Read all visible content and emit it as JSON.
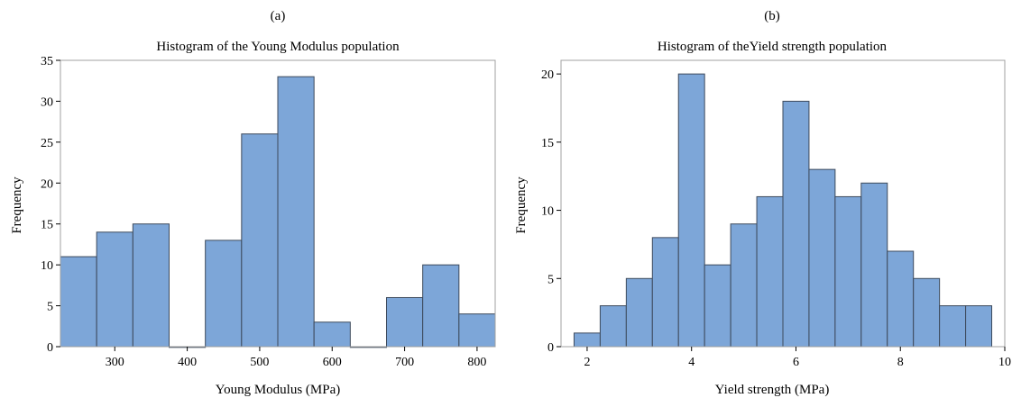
{
  "chart_data": [
    {
      "type": "bar",
      "panel_label": "(a)",
      "title": "Histogram of the Young Modulus population",
      "xlabel": "Young Modulus (MPa)",
      "ylabel": "Frequency",
      "bin_edges": [
        225,
        275,
        325,
        375,
        425,
        475,
        525,
        575,
        625,
        675,
        725,
        775,
        825
      ],
      "values": [
        11,
        14,
        15,
        0,
        13,
        26,
        33,
        3,
        0,
        6,
        10,
        4
      ],
      "xlim": [
        225,
        825
      ],
      "ylim": [
        0,
        35
      ],
      "xticks": [
        300,
        400,
        500,
        600,
        700,
        800
      ],
      "yticks": [
        0,
        5,
        10,
        15,
        20,
        25,
        30,
        35
      ],
      "bar_color": "#7da6d8",
      "edge_color": "#3d4a5c",
      "grid": false
    },
    {
      "type": "bar",
      "panel_label": "(b)",
      "title": "Histogram of theYield strength population",
      "xlabel": "Yield strength (MPa)",
      "ylabel": "Frequency",
      "bin_edges": [
        1.75,
        2.25,
        2.75,
        3.25,
        3.75,
        4.25,
        4.75,
        5.25,
        5.75,
        6.25,
        6.75,
        7.25,
        7.75,
        8.25,
        8.75,
        9.25,
        9.75
      ],
      "values": [
        1,
        3,
        5,
        8,
        20,
        6,
        9,
        11,
        18,
        13,
        11,
        12,
        7,
        5,
        3,
        3
      ],
      "xlim": [
        1.5,
        10
      ],
      "ylim": [
        0,
        21
      ],
      "xticks": [
        2,
        4,
        6,
        8,
        10
      ],
      "yticks": [
        0,
        5,
        10,
        15,
        20
      ],
      "bar_color": "#7da6d8",
      "edge_color": "#3d4a5c",
      "grid": false
    }
  ]
}
